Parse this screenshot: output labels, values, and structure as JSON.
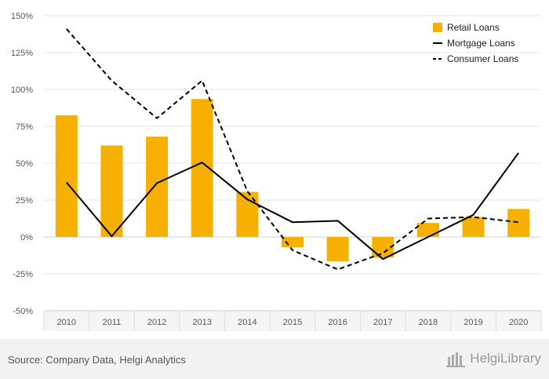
{
  "chart_data": {
    "type": "bar",
    "categories": [
      "2010",
      "2011",
      "2012",
      "2013",
      "2014",
      "2015",
      "2016",
      "2017",
      "2018",
      "2019",
      "2020"
    ],
    "series": [
      {
        "name": "Retail Loans",
        "kind": "bar",
        "color": "#f5b000",
        "values": [
          82.5,
          62,
          68,
          93.5,
          30.5,
          -7,
          -16.5,
          -14,
          9.5,
          13.5,
          19
        ]
      },
      {
        "name": "Mortgage Loans",
        "kind": "line",
        "style": "solid",
        "color": "#000000",
        "values": [
          37,
          0.5,
          36.5,
          50.5,
          25.5,
          10,
          11,
          -15,
          0,
          15,
          57
        ]
      },
      {
        "name": "Consumer Loans",
        "kind": "line",
        "style": "dashed",
        "color": "#000000",
        "values": [
          141,
          106,
          80.5,
          106,
          31,
          -9,
          -22,
          -11,
          12.5,
          13.5,
          10
        ]
      }
    ],
    "ylim": [
      -50,
      150
    ],
    "yticks": [
      150,
      125,
      100,
      75,
      50,
      25,
      0,
      -25,
      -50
    ],
    "ytick_labels": [
      "150%",
      "125%",
      "100%",
      "75%",
      "50%",
      "25%",
      "0%",
      "-25%",
      "-50%"
    ],
    "grid": true,
    "legend_position": "top-right"
  },
  "footer": {
    "source": "Source: Company Data, Helgi Analytics",
    "brand": "HelgiLibrary"
  }
}
